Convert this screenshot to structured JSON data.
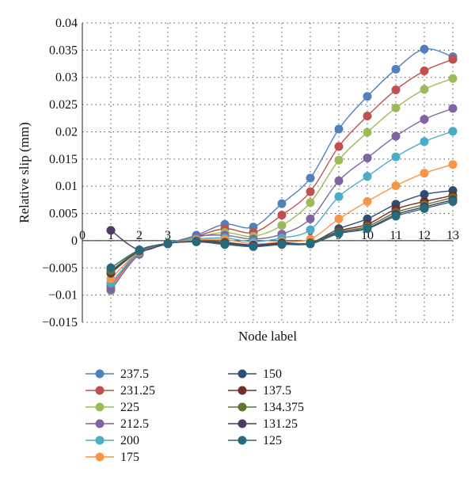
{
  "chart_data": {
    "type": "line",
    "xlabel": "Node label",
    "ylabel": "Relative slip (mm)",
    "xlim": [
      0,
      13
    ],
    "ylim": [
      -0.015,
      0.04
    ],
    "x_ticks": [
      "0",
      "1",
      "2",
      "3",
      "4",
      "5",
      "6",
      "7",
      "8",
      "9",
      "10",
      "11",
      "12",
      "13"
    ],
    "y_ticks": [
      "−0.015",
      "−0.01",
      "−0.005",
      "0",
      "0.005",
      "0.01",
      "0.015",
      "0.02",
      "0.025",
      "0.03",
      "0.035",
      "0.04"
    ],
    "grid": "dotted",
    "legend_position": "bottom",
    "x": [
      1,
      2,
      3,
      4,
      5,
      6,
      7,
      8,
      9,
      10,
      11,
      12,
      13
    ],
    "series": [
      {
        "name": "237.5",
        "color": "#4f81bd",
        "values": [
          -0.008,
          -0.002,
          -0.0005,
          0.001,
          0.003,
          0.0025,
          0.0068,
          0.0115,
          0.0205,
          0.0265,
          0.0315,
          0.0352,
          0.0338
        ]
      },
      {
        "name": "231.25",
        "color": "#c0504d",
        "values": [
          -0.0085,
          -0.0022,
          -0.0006,
          0.0008,
          0.0022,
          0.0015,
          0.0047,
          0.009,
          0.0173,
          0.0229,
          0.0277,
          0.0312,
          0.0333
        ]
      },
      {
        "name": "225",
        "color": "#9bbb59",
        "values": [
          -0.0092,
          -0.0025,
          -0.0006,
          0.0006,
          0.0015,
          0.0008,
          0.0028,
          0.007,
          0.0148,
          0.0199,
          0.0244,
          0.0278,
          0.0298
        ]
      },
      {
        "name": "212.5",
        "color": "#8064a2",
        "values": [
          -0.009,
          -0.0025,
          -0.0006,
          0.0008,
          0.001,
          0.0003,
          0.0012,
          0.004,
          0.011,
          0.0152,
          0.0192,
          0.0223,
          0.0243
        ]
      },
      {
        "name": "200",
        "color": "#4bacc6",
        "values": [
          -0.0078,
          -0.0022,
          -0.0005,
          0.0003,
          0.0005,
          -0.0002,
          0.0005,
          0.002,
          0.0081,
          0.0118,
          0.0154,
          0.0182,
          0.0201
        ]
      },
      {
        "name": "175",
        "color": "#f79646",
        "values": [
          -0.007,
          -0.002,
          -0.0005,
          0.0001,
          0.0002,
          -0.0006,
          -0.0002,
          0.0003,
          0.004,
          0.0072,
          0.0101,
          0.0124,
          0.014
        ]
      },
      {
        "name": "150",
        "color": "#2c4d75",
        "values": [
          -0.006,
          -0.0019,
          -0.0005,
          -0.0001,
          -0.0003,
          -0.0008,
          -0.0004,
          -0.0004,
          0.0022,
          0.004,
          0.0067,
          0.0085,
          0.0092
        ]
      },
      {
        "name": "137.5",
        "color": "#772c2a",
        "values": [
          -0.0058,
          -0.0018,
          -0.0005,
          -0.0001,
          -0.0004,
          -0.0009,
          -0.0005,
          -0.0005,
          0.0018,
          0.003,
          0.0058,
          0.0072,
          0.0083
        ]
      },
      {
        "name": "134.375",
        "color": "#5f7530",
        "values": [
          -0.0055,
          -0.0018,
          -0.0005,
          -0.0002,
          -0.0005,
          -0.001,
          -0.0006,
          -0.0005,
          0.0016,
          0.0026,
          0.0052,
          0.0066,
          0.0079
        ]
      },
      {
        "name": "131.25",
        "color": "#4d3b62",
        "values": [
          0.0019,
          -0.0017,
          -0.0005,
          -0.0002,
          -0.0006,
          -0.001,
          -0.0006,
          -0.0006,
          0.0014,
          0.0023,
          0.0048,
          0.0062,
          0.0075
        ]
      },
      {
        "name": "125",
        "color": "#276a7c",
        "values": [
          -0.005,
          -0.0017,
          -0.0005,
          -0.0002,
          -0.0007,
          -0.0011,
          -0.0007,
          -0.0006,
          0.0013,
          0.0022,
          0.0045,
          0.0059,
          0.0072
        ]
      }
    ]
  }
}
